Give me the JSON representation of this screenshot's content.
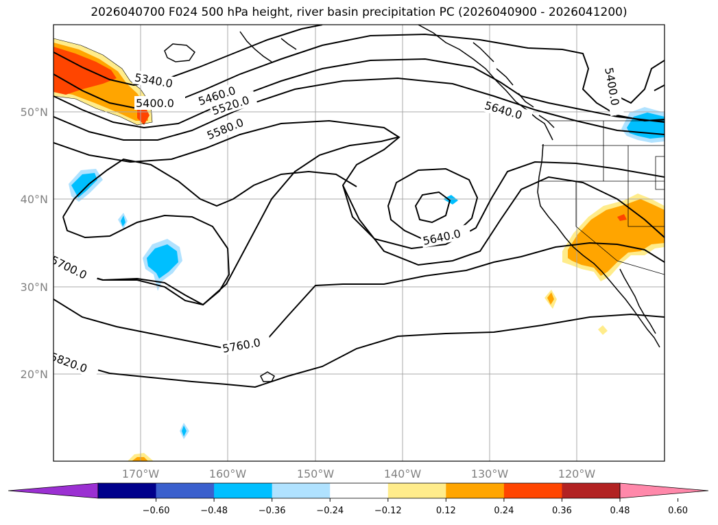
{
  "title": "2026040700 F024 500 hPa height, river basin precipitation PC (2026040900 - 2026041200)",
  "map": {
    "lat_labels": [
      "50°N",
      "40°N",
      "30°N",
      "20°N"
    ],
    "lon_labels": [
      "170°W",
      "160°W",
      "150°W",
      "140°W",
      "130°W",
      "120°W"
    ],
    "contour_labels": [
      "5340.0",
      "5400.0",
      "5460.0",
      "5520.0",
      "5580.0",
      "5640.0",
      "5640.0",
      "5400.0",
      "5700.0",
      "5760.0",
      "5820.0"
    ]
  },
  "colorbar": {
    "colors": [
      "#9b30d2",
      "#00008b",
      "#3a5fcd",
      "#00bfff",
      "#b0e2ff",
      "#ffffff",
      "#ffec8b",
      "#ffa500",
      "#ff4500",
      "#b22222",
      "#ff88aa"
    ],
    "ticks": [
      "−0.60",
      "−0.48",
      "−0.36",
      "−0.24",
      "−0.12",
      "0.12",
      "0.24",
      "0.36",
      "0.48",
      "0.60"
    ]
  }
}
